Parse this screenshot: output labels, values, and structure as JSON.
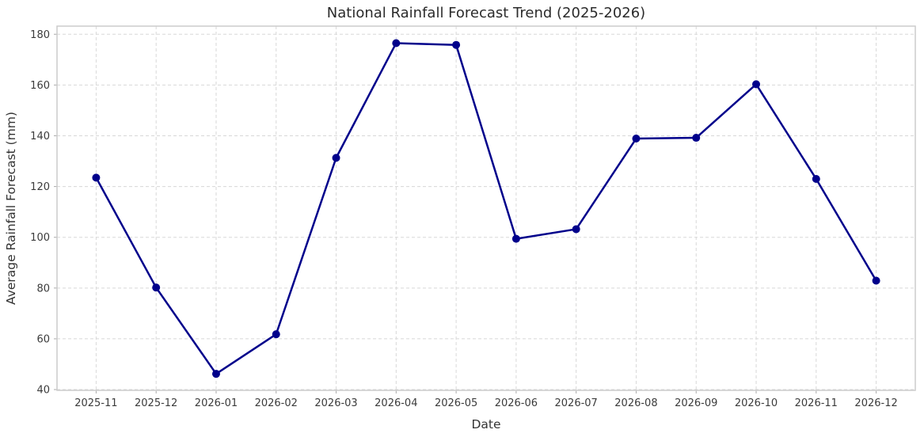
{
  "chart_data": {
    "type": "line",
    "title": "National Rainfall Forecast Trend (2025-2026)",
    "xlabel": "Date",
    "ylabel": "Average Rainfall Forecast (mm)",
    "categories": [
      "2025-11",
      "2025-12",
      "2026-01",
      "2026-02",
      "2026-03",
      "2026-04",
      "2026-05",
      "2026-06",
      "2026-07",
      "2026-08",
      "2026-09",
      "2026-10",
      "2026-11",
      "2026-12"
    ],
    "values": [
      123.5,
      80.2,
      46.2,
      61.8,
      131.3,
      176.5,
      175.8,
      99.4,
      103.2,
      138.9,
      139.2,
      160.3,
      123.0,
      82.9
    ],
    "yticks": [
      40,
      60,
      80,
      100,
      120,
      140,
      160,
      180
    ],
    "ylim": [
      40,
      180
    ],
    "grid": true,
    "grid_style": "dashed",
    "legend_position": "none",
    "colors": {
      "line": "#00008B",
      "marker": "#00008B",
      "grid": "#d8d8d8",
      "spine": "#cccccc",
      "tick_mark": "#aaaaaa",
      "tick_text": "#3b3b3b",
      "title_text": "#2b2b2b"
    }
  }
}
